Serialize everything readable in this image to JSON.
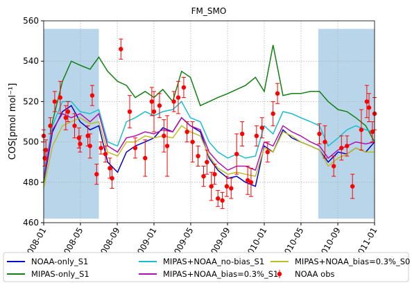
{
  "chart_data": {
    "type": "line",
    "title": "FM_SMO",
    "y_label": "COS[pmol mol⁻¹]",
    "xlim": [
      2008.0,
      2011.0
    ],
    "ylim": [
      460,
      560
    ],
    "xticks": [
      {
        "value": 2008.0,
        "label": "2008-01"
      },
      {
        "value": 2008.333,
        "label": "2008-05"
      },
      {
        "value": 2008.667,
        "label": "2008-09"
      },
      {
        "value": 2009.0,
        "label": "2009-01"
      },
      {
        "value": 2009.333,
        "label": "2009-05"
      },
      {
        "value": 2009.667,
        "label": "2009-09"
      },
      {
        "value": 2010.0,
        "label": "2010-01"
      },
      {
        "value": 2010.333,
        "label": "2010-05"
      },
      {
        "value": 2010.667,
        "label": "2010-09"
      },
      {
        "value": 2011.0,
        "label": "2011-01"
      }
    ],
    "yticks": [
      460,
      480,
      500,
      520,
      540,
      560
    ],
    "grid": true,
    "legend": "below",
    "spans": [
      {
        "x": [
          2008.0,
          2008.5
        ],
        "y": [
          462,
          556
        ],
        "color": "#7fb2d8"
      },
      {
        "x": [
          2010.49,
          2011.0
        ],
        "y": [
          462,
          556
        ],
        "color": "#7fb2d8"
      }
    ],
    "x": [
      2008.0,
      2008.08,
      2008.17,
      2008.25,
      2008.33,
      2008.42,
      2008.5,
      2008.58,
      2008.67,
      2008.75,
      2008.83,
      2008.92,
      2009.0,
      2009.08,
      2009.17,
      2009.25,
      2009.33,
      2009.42,
      2009.5,
      2009.58,
      2009.67,
      2009.75,
      2009.83,
      2009.92,
      2010.0,
      2010.08,
      2010.17,
      2010.25,
      2010.33,
      2010.42,
      2010.5,
      2010.58,
      2010.67,
      2010.75,
      2010.83,
      2010.92,
      2011.0
    ],
    "series": [
      {
        "name": "NOAA-only_S1",
        "color": "#0000cc",
        "values": [
          480,
          505,
          515,
          518,
          510,
          506,
          508,
          490,
          485,
          495,
          498,
          500,
          502,
          507,
          505,
          512,
          508,
          505,
          492,
          486,
          482,
          483,
          480,
          478,
          498,
          495,
          506,
          502,
          500,
          498,
          496,
          490,
          495,
          494,
          497,
          495,
          500
        ]
      },
      {
        "name": "MIPAS-only_S1",
        "color": "#108010",
        "values": [
          480,
          510,
          530,
          540,
          538,
          536,
          542,
          535,
          530,
          528,
          522,
          525,
          522,
          526,
          520,
          535,
          532,
          518,
          520,
          522,
          524,
          526,
          528,
          532,
          525,
          548,
          523,
          524,
          524,
          525,
          525,
          520,
          516,
          515,
          512,
          508,
          500
        ]
      },
      {
        "name": "MIPAS+NOAA_no-bias_S1",
        "color": "#17becf",
        "values": [
          484,
          508,
          520,
          520,
          515,
          514,
          516,
          500,
          498,
          510,
          512,
          515,
          513,
          515,
          516,
          520,
          512,
          510,
          500,
          495,
          492,
          494,
          492,
          493,
          508,
          504,
          515,
          514,
          512,
          510,
          508,
          498,
          502,
          506,
          508,
          506,
          505
        ]
      },
      {
        "name": "MIPAS+NOAA_bias=0.3%_S1",
        "color": "#b010b0",
        "values": [
          482,
          506,
          514,
          512,
          514,
          510,
          514,
          498,
          495,
          502,
          503,
          505,
          504,
          506,
          505,
          512,
          508,
          506,
          495,
          490,
          486,
          488,
          488,
          486,
          500,
          498,
          508,
          505,
          503,
          500,
          498,
          492,
          496,
          498,
          500,
          499,
          500
        ]
      },
      {
        "name": "MIPAS+NOAA_bias=0.3%_S0",
        "color": "#bcbd22",
        "values": [
          477,
          498,
          508,
          510,
          512,
          509,
          510,
          495,
          493,
          500,
          500,
          503,
          502,
          503,
          502,
          508,
          505,
          503,
          493,
          487,
          484,
          485,
          484,
          483,
          497,
          495,
          505,
          503,
          500,
          498,
          496,
          488,
          492,
          494,
          497,
          495,
          495
        ]
      },
      {
        "name": "NOAA obs",
        "color": "#ff0000",
        "style": "errorbar",
        "x": [
          2008.0,
          2008.01,
          2008.02,
          2008.06,
          2008.1,
          2008.15,
          2008.2,
          2008.22,
          2008.28,
          2008.32,
          2008.33,
          2008.4,
          2008.42,
          2008.44,
          2008.48,
          2008.52,
          2008.56,
          2008.6,
          2008.62,
          2008.7,
          2008.78,
          2008.83,
          2008.92,
          2008.98,
          2009.0,
          2009.05,
          2009.09,
          2009.12,
          2009.18,
          2009.22,
          2009.27,
          2009.3,
          2009.35,
          2009.4,
          2009.45,
          2009.48,
          2009.52,
          2009.55,
          2009.58,
          2009.62,
          2009.66,
          2009.7,
          2009.75,
          2009.8,
          2009.85,
          2009.88,
          2009.93,
          2009.98,
          2010.03,
          2010.08,
          2010.12,
          2010.5,
          2010.55,
          2010.63,
          2010.7,
          2010.75,
          2010.8,
          2010.88,
          2010.93,
          2010.95,
          2010.98,
          2011.0
        ],
        "values": [
          503,
          492,
          496,
          508,
          520,
          522,
          512,
          515,
          508,
          502,
          499,
          503,
          498,
          523,
          484,
          497,
          494,
          487,
          482,
          546,
          515,
          497,
          492,
          520,
          515,
          518,
          503,
          498,
          520,
          522,
          527,
          505,
          500,
          493,
          483,
          490,
          478,
          484,
          472,
          471,
          478,
          477,
          494,
          504,
          481,
          480,
          503,
          507,
          495,
          514,
          524,
          504,
          500,
          488,
          497,
          498,
          478,
          506,
          520,
          517,
          505,
          514
        ],
        "errors": [
          3,
          4,
          5,
          4,
          5,
          8,
          6,
          5,
          6,
          5,
          4,
          5,
          6,
          5,
          5,
          3,
          4,
          5,
          5,
          5,
          8,
          5,
          9,
          7,
          10,
          6,
          8,
          15,
          5,
          8,
          5,
          5,
          10,
          5,
          5,
          6,
          7,
          5,
          4,
          4,
          5,
          5,
          10,
          6,
          7,
          7,
          5,
          5,
          5,
          6,
          5,
          5,
          8,
          5,
          6,
          5,
          6,
          10,
          8,
          7,
          5,
          8
        ]
      }
    ]
  }
}
